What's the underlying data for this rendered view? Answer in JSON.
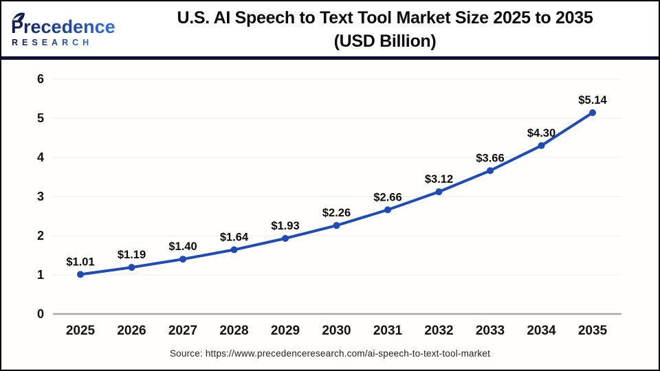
{
  "header": {
    "logo": {
      "brand": "Precedence",
      "sub": "RESEARCH"
    },
    "title_line1": "U.S. AI Speech to Text Tool Market Size 2025 to 2035",
    "title_line2": "(USD Billion)"
  },
  "chart_data": {
    "type": "line",
    "title": "U.S. AI Speech to Text Tool Market Size 2025 to 2035 (USD Billion)",
    "categories": [
      "2025",
      "2026",
      "2027",
      "2028",
      "2029",
      "2030",
      "2031",
      "2032",
      "2033",
      "2034",
      "2035"
    ],
    "values": [
      1.01,
      1.19,
      1.4,
      1.64,
      1.93,
      2.26,
      2.66,
      3.12,
      3.66,
      4.3,
      5.14
    ],
    "point_labels": [
      "$1.01",
      "$1.19",
      "$1.40",
      "$1.64",
      "$1.93",
      "$2.26",
      "$2.66",
      "$3.12",
      "$3.66",
      "$4.30",
      "$5.14"
    ],
    "y_ticks": [
      0,
      1,
      2,
      3,
      4,
      5,
      6
    ],
    "ylim": [
      0,
      6
    ],
    "xlabel": "",
    "ylabel": "",
    "grid": true,
    "legend": "none",
    "line_color": "#1f4bb4",
    "marker_color": "#1f4bb4",
    "gridline_color": "#ededed",
    "baseline_color": "#a8a8a8"
  },
  "footer": {
    "source": "Source: https://www.precedenceresearch.com/ai-speech-to-text-tool-market"
  },
  "colors": {
    "divider_navy": "#0d1138",
    "logo_gradient_start": "#11194d",
    "logo_gradient_end": "#2e6fe2",
    "title_text": "#0a0a0a",
    "background": "#ffffff"
  }
}
